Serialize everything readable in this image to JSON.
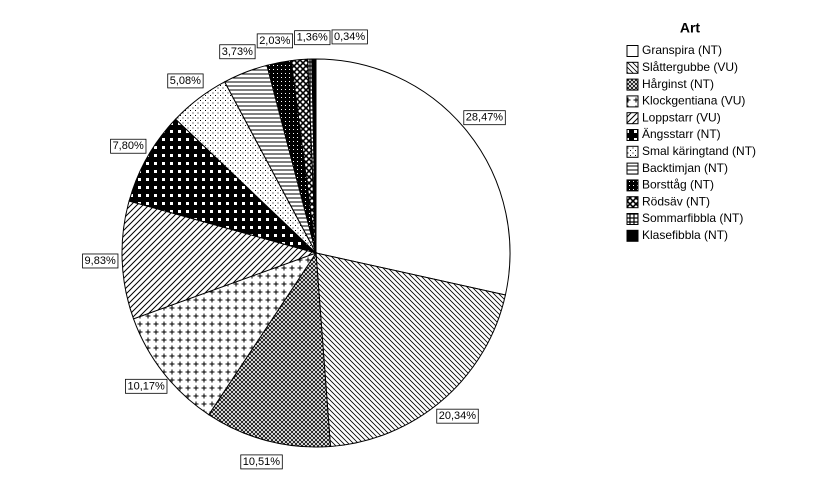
{
  "chart_data": {
    "type": "pie",
    "legend_title": "Art",
    "categories": [
      "Granspira (NT)",
      "Slåttergubbe (VU)",
      "Hårginst (NT)",
      "Klockgentiana (VU)",
      "Loppstarr (VU)",
      "Ängsstarr (NT)",
      "Smal käringtand (NT)",
      "Backtimjan (NT)",
      "Borsttåg (NT)",
      "Rödsäv (NT)",
      "Sommarfibbla (NT)",
      "Klasefibbla (NT)"
    ],
    "values": [
      28.47,
      20.34,
      10.51,
      10.17,
      9.83,
      7.8,
      5.08,
      3.73,
      2.03,
      1.36,
      0.34,
      0.34
    ],
    "value_labels": [
      "28,47%",
      "20,34%",
      "10,51%",
      "10,17%",
      "9,83%",
      "7,80%",
      "5,08%",
      "3,73%",
      "2,03%",
      "1,36%",
      null,
      "0,34%"
    ],
    "legend_position": "right"
  }
}
